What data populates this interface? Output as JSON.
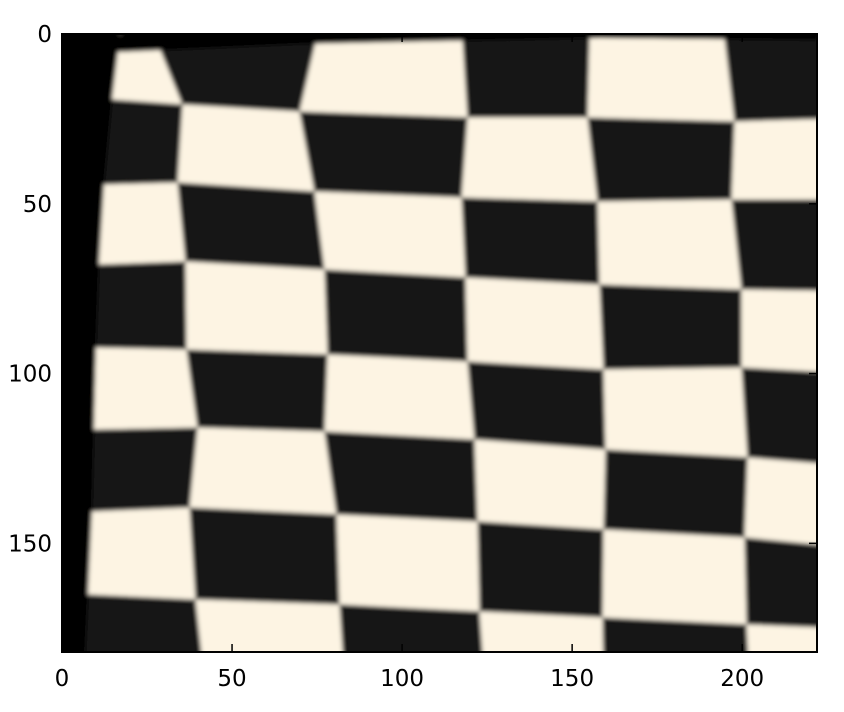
{
  "figure": {
    "subject": "checkerboard",
    "x_ticks": [
      "0",
      "50",
      "100",
      "150",
      "200"
    ],
    "y_ticks": [
      "0",
      "50",
      "100",
      "150"
    ],
    "x_range": [
      0,
      222
    ],
    "y_range": [
      0,
      182
    ],
    "board_rows": 8,
    "board_cols": 6,
    "light_square_color": "#fdf4e3",
    "dark_square_color": "#141414",
    "background_color": "#000000",
    "frame_color": "#000000"
  }
}
